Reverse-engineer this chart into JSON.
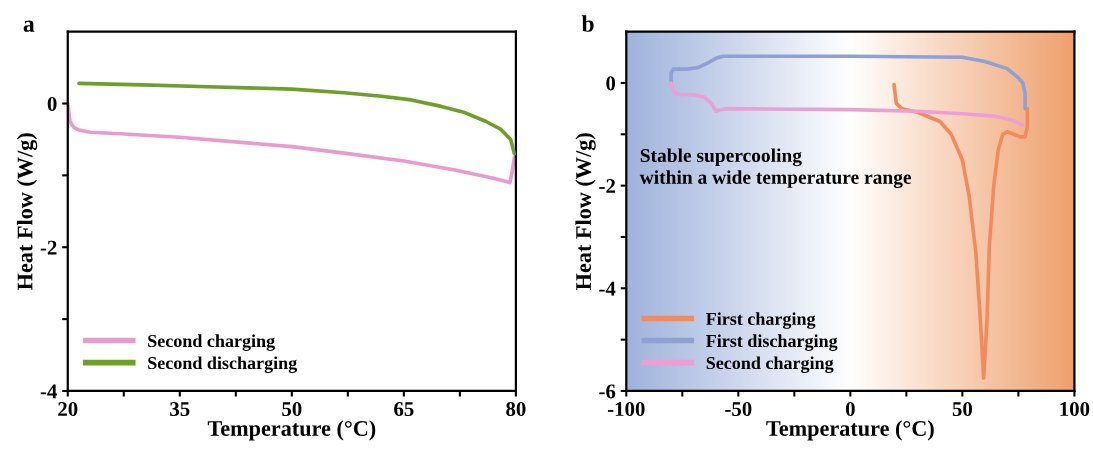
{
  "chart_data": [
    {
      "type": "line",
      "title": "a",
      "xlabel": "Temperature (°C)",
      "ylabel": "Heat Flow (W/g)",
      "xlim": [
        20,
        80
      ],
      "xticks": [
        20,
        {
          "value": 27.5,
          "label": null
        },
        35,
        {
          "value": 42.5,
          "label": null
        },
        50,
        {
          "value": 57.5,
          "label": null
        },
        65,
        {
          "value": 72.5,
          "label": null
        },
        80
      ],
      "ylim": [
        -4,
        1
      ],
      "yticks": [
        -4,
        {
          "value": -3,
          "label": null
        },
        -2,
        {
          "value": -1,
          "label": null
        },
        0
      ],
      "legend": "bottom left",
      "grid": false,
      "marker": "none",
      "line_style": "solid",
      "series": [
        {
          "name": "Second charging",
          "color": "#e99ad0",
          "x": [
            20,
            20.3,
            20.8,
            21.5,
            23,
            27,
            35,
            42,
            50,
            57,
            65,
            72,
            77,
            79.2,
            79.5,
            79.8
          ],
          "values": [
            0,
            -0.25,
            -0.33,
            -0.37,
            -0.4,
            -0.42,
            -0.47,
            -0.53,
            -0.6,
            -0.69,
            -0.8,
            -0.93,
            -1.04,
            -1.1,
            -0.95,
            -0.75
          ]
        },
        {
          "name": "Second discharging",
          "color": "#6f9f2b",
          "x": [
            21.5,
            30,
            40,
            50,
            57,
            62,
            66,
            70,
            73,
            76,
            78,
            79.3,
            79.8
          ],
          "values": [
            0.28,
            0.26,
            0.23,
            0.2,
            0.15,
            0.1,
            0.05,
            -0.04,
            -0.12,
            -0.25,
            -0.36,
            -0.5,
            -0.7
          ]
        }
      ]
    },
    {
      "type": "line",
      "title": "b",
      "xlabel": "Temperature (°C)",
      "ylabel": "Heat Flow (W/g)",
      "xlim": [
        -100,
        100
      ],
      "xticks": [
        -100,
        {
          "value": -75,
          "label": null
        },
        -50,
        {
          "value": -25,
          "label": null
        },
        0,
        {
          "value": 25,
          "label": null
        },
        50,
        {
          "value": 75,
          "label": null
        },
        100
      ],
      "ylim": [
        -6,
        1
      ],
      "yticks": [
        -6,
        {
          "value": -5,
          "label": null
        },
        -4,
        {
          "value": -3,
          "label": null
        },
        -2,
        {
          "value": -1,
          "label": null
        },
        0
      ],
      "legend": "bottom left",
      "grid": false,
      "marker": "none",
      "line_style": "solid",
      "annotations": [
        "Stable supercooling\nwithin a wide temperature range"
      ],
      "series": [
        {
          "name": "First charging",
          "color": "#f38a5c",
          "x": [
            19.5,
            20.5,
            23,
            30,
            40,
            45,
            50,
            53,
            56,
            58,
            59.5,
            61,
            62,
            64,
            66,
            68,
            70,
            76,
            78,
            79,
            79
          ],
          "values": [
            -0.03,
            -0.4,
            -0.5,
            -0.57,
            -0.75,
            -1.0,
            -1.5,
            -2.2,
            -3.3,
            -4.6,
            -5.75,
            -4.6,
            -3.2,
            -2.0,
            -1.3,
            -1.0,
            -0.95,
            -1.05,
            -1.05,
            -0.85,
            -0.5
          ]
        },
        {
          "name": "First discharging",
          "color": "#8fa0d2",
          "x": [
            78,
            78,
            77,
            75,
            70,
            60,
            50,
            0,
            -57,
            -60,
            -64,
            -68,
            -73,
            -79,
            -80,
            -80
          ],
          "values": [
            -0.5,
            -0.2,
            0.0,
            0.1,
            0.28,
            0.42,
            0.5,
            0.52,
            0.52,
            0.48,
            0.38,
            0.3,
            0.27,
            0.27,
            0.2,
            0.0
          ]
        },
        {
          "name": "Second charging",
          "color": "#ec9ed6",
          "x": [
            -80,
            -79,
            -77,
            -70,
            -65,
            -62,
            -60,
            -58,
            -55,
            0,
            30,
            50,
            65,
            72,
            77
          ],
          "values": [
            0.0,
            -0.15,
            -0.22,
            -0.23,
            -0.28,
            -0.4,
            -0.55,
            -0.52,
            -0.5,
            -0.52,
            -0.55,
            -0.6,
            -0.65,
            -0.72,
            -0.82
          ]
        }
      ]
    }
  ]
}
